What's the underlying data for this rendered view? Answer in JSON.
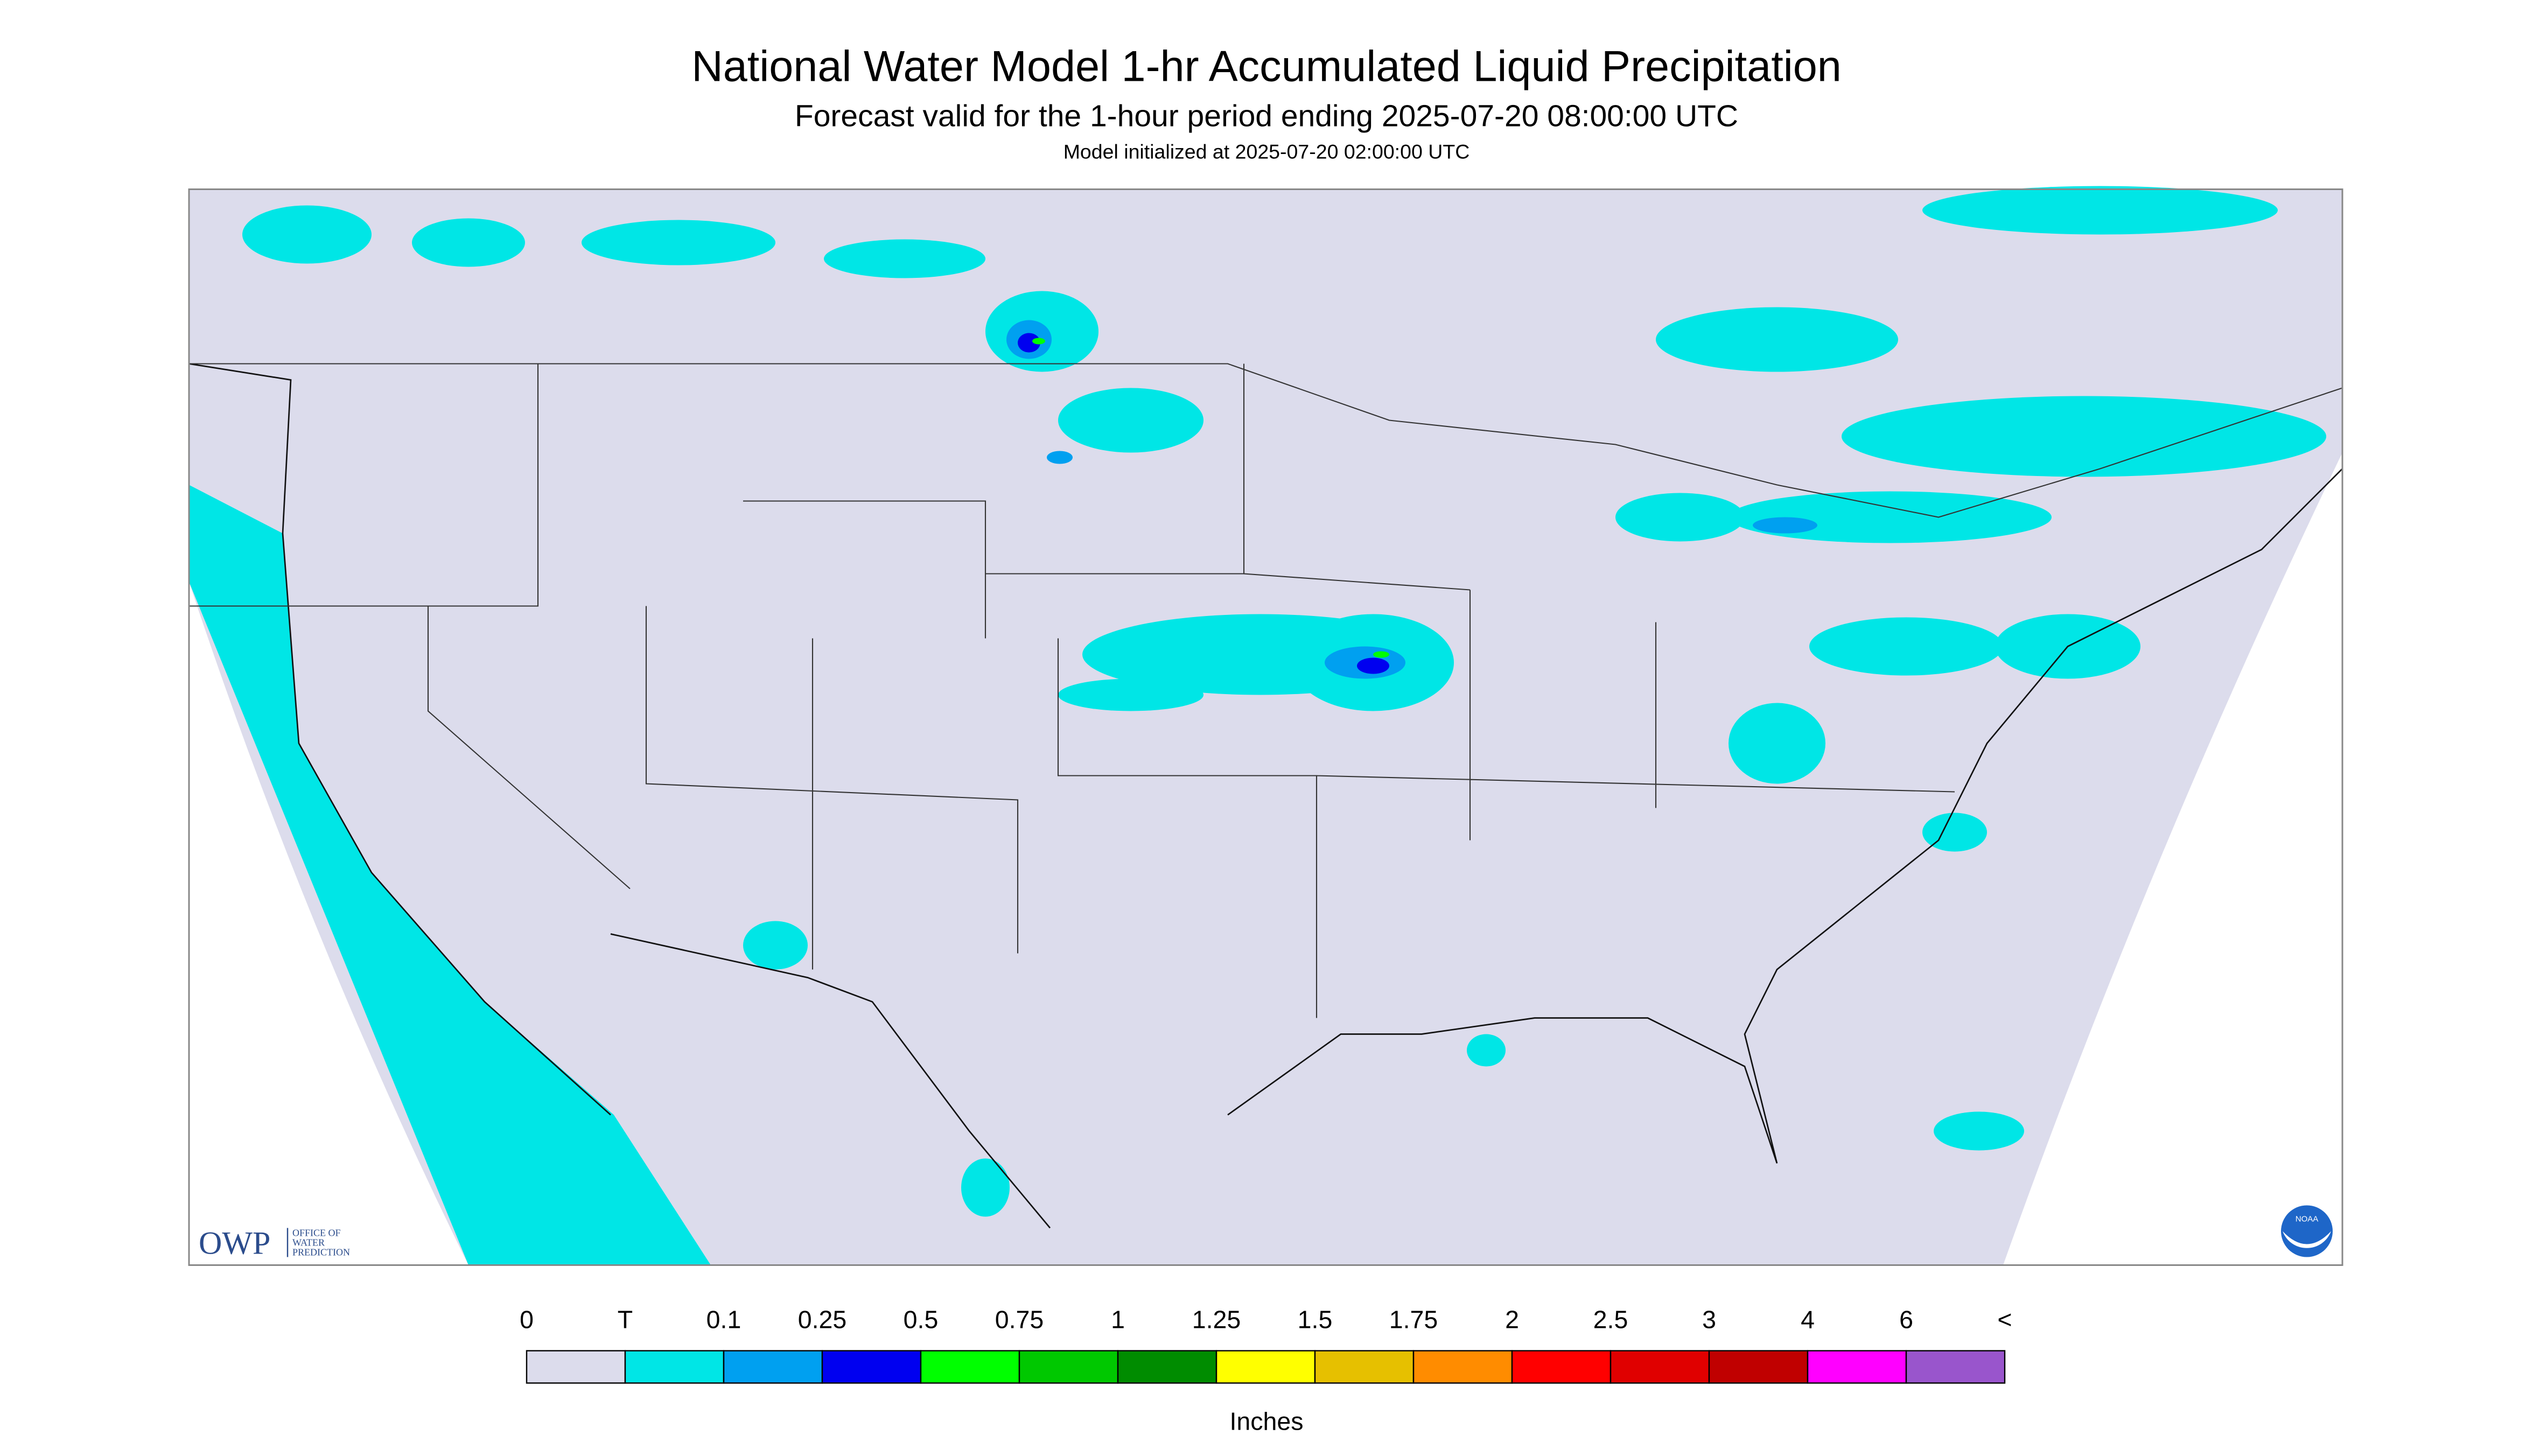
{
  "header": {
    "title": "National Water Model 1-hr Accumulated Liquid Precipitation",
    "subtitle": "Forecast valid for the 1-hour period ending 2025-07-20 08:00:00 UTC",
    "note": "Model initialized at 2025-07-20 02:00:00 UTC"
  },
  "logo": {
    "owp": "OWP",
    "owp_text": [
      "OFFICE OF",
      "WATER",
      "PREDICTION"
    ],
    "noaa": "NOAA"
  },
  "legend": {
    "labels": [
      "0",
      "T",
      "0.1",
      "0.25",
      "0.5",
      "0.75",
      "1",
      "1.25",
      "1.5",
      "1.75",
      "2",
      "2.5",
      "3",
      "4",
      "6",
      "<"
    ],
    "colors": [
      "#dcdcec",
      "#00e6e6",
      "#00a0f0",
      "#0000f0",
      "#00ff00",
      "#00c800",
      "#008c00",
      "#ffff00",
      "#e6c000",
      "#ff8c00",
      "#ff0000",
      "#e00000",
      "#c00000",
      "#ff00ff",
      "#9955cc"
    ],
    "unit": "Inches"
  }
}
